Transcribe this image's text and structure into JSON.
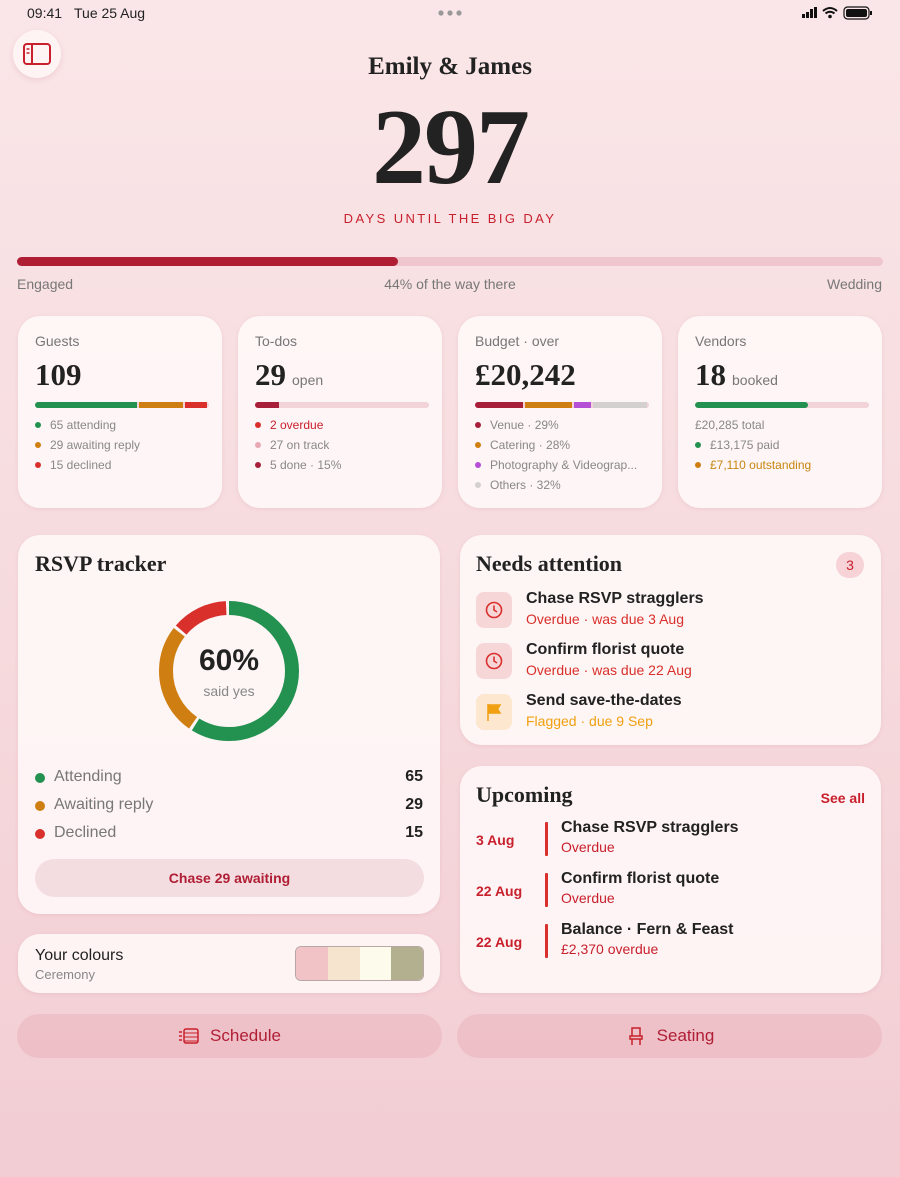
{
  "status_bar": {
    "time": "09:41",
    "date": "Tue 25 Aug"
  },
  "header": {
    "names": "Emily & James",
    "days": "297",
    "caption": "DAYS UNTIL THE BIG DAY"
  },
  "progress": {
    "start": "Engaged",
    "end": "Wedding",
    "value": 44,
    "label": "44% of the way there"
  },
  "cards": [
    {
      "title": "Guests",
      "number": "109",
      "items": [
        {
          "value": 65,
          "label": "65 attending",
          "color": "#23914f"
        },
        {
          "value": 29,
          "label": "29 awaiting reply",
          "color": "#cf7f12"
        },
        {
          "value": 15,
          "label": "15 declined",
          "color": "#d9302b"
        }
      ]
    },
    {
      "title": "To-dos",
      "number": "29",
      "unit": "open",
      "items": [
        {
          "value": 2,
          "label": "2 overdue",
          "color": "#d9302b",
          "text_color": "#c8202c"
        },
        {
          "value": 27,
          "label": "27 on track",
          "color": "#e8a9b4"
        },
        {
          "value": 5,
          "percent": 15,
          "label": "5 done · 15%",
          "color": "#a81f3a"
        }
      ]
    },
    {
      "title": "Budget · over",
      "number": "£20,242",
      "items": [
        {
          "percent": 29,
          "label": "Venue · 29%",
          "color": "#a81f3a"
        },
        {
          "percent": 28,
          "label": "Catering · 28%",
          "color": "#cf7f12"
        },
        {
          "percent": 11,
          "label": "Photography & Videograp...",
          "color": "#b44fd6"
        },
        {
          "percent": 32,
          "label": "Others · 32%",
          "color": "#d4d0d0"
        }
      ]
    },
    {
      "title": "Vendors",
      "number": "18",
      "unit": "booked",
      "items": [
        {
          "value": 20285,
          "label": "£20,285 total"
        },
        {
          "value": 13175,
          "label": "£13,175 paid",
          "color": "#23914f"
        },
        {
          "value": 7110,
          "label": "£7,110 outstanding",
          "color": "#cf7f12",
          "text_color": "#c7860f"
        }
      ]
    }
  ],
  "rsvp": {
    "title": "RSVP tracker",
    "center": {
      "value": 60,
      "label": "60%"
    },
    "caption": "said yes",
    "rows": [
      {
        "label": "Attending",
        "value": 65,
        "color": "#23914f"
      },
      {
        "label": "Awaiting reply",
        "value": 29,
        "color": "#cf7f12"
      },
      {
        "label": "Declined",
        "value": 15,
        "color": "#d9302b"
      }
    ],
    "button": "Chase 29 awaiting"
  },
  "colours": {
    "title": "Your colours",
    "subtitle": "Ceremony",
    "swatches": [
      "#f2c3c6",
      "#f6e4cf",
      "#fdfbec",
      "#b3b08f"
    ]
  },
  "attention": {
    "title": "Needs attention",
    "count": "3",
    "items": [
      {
        "title": "Chase RSVP stragglers",
        "status": "Overdue · was due 3 Aug",
        "icon": "clock",
        "color": "#d9302b"
      },
      {
        "title": "Confirm florist quote",
        "status": "Overdue · was due 22 Aug",
        "icon": "clock",
        "color": "#d9302b"
      },
      {
        "title": "Send save-the-dates",
        "status": "Flagged · due 9 Sep",
        "icon": "flag",
        "color": "#f0a010"
      }
    ]
  },
  "upcoming": {
    "title": "Upcoming",
    "link": "See all",
    "items": [
      {
        "date": "3 Aug",
        "title": "Chase RSVP stragglers",
        "status": "Overdue"
      },
      {
        "date": "22 Aug",
        "title": "Confirm florist quote",
        "status": "Overdue"
      },
      {
        "date": "22 Aug",
        "title": "Balance · Fern & Feast",
        "status": "£2,370 overdue"
      }
    ]
  },
  "buttons": [
    "Schedule",
    "Seating"
  ]
}
